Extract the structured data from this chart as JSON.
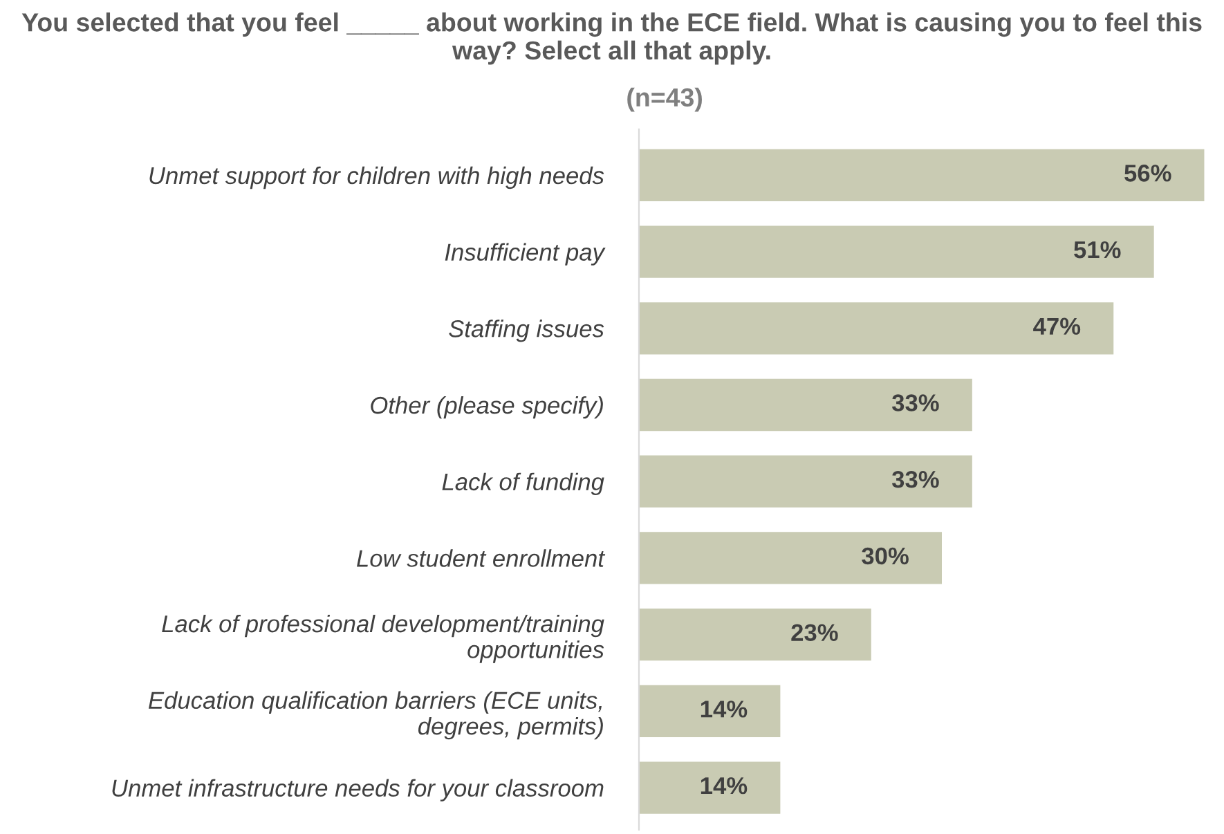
{
  "chart_data": {
    "type": "bar",
    "orientation": "horizontal",
    "title": "You selected that you feel _____ about working in the ECE field. What is causing you to feel this way? Select all that apply.",
    "subtitle": "(n=43)",
    "categories": [
      "Unmet support for children with high needs",
      "Insufficient pay",
      "Staffing issues",
      "Other (please specify)",
      "Lack of funding",
      "Low student enrollment",
      "Lack of professional development/training\nopportunities",
      "Education qualification barriers (ECE units,\ndegrees, permits)",
      "Unmet infrastructure needs for your classroom"
    ],
    "values": [
      56,
      51,
      47,
      33,
      33,
      30,
      23,
      14,
      14
    ],
    "value_labels": [
      "56%",
      "51%",
      "47%",
      "33%",
      "33%",
      "30%",
      "23%",
      "14%",
      "14%"
    ],
    "color": "#c9cbb3",
    "grid": false,
    "legend": false
  }
}
